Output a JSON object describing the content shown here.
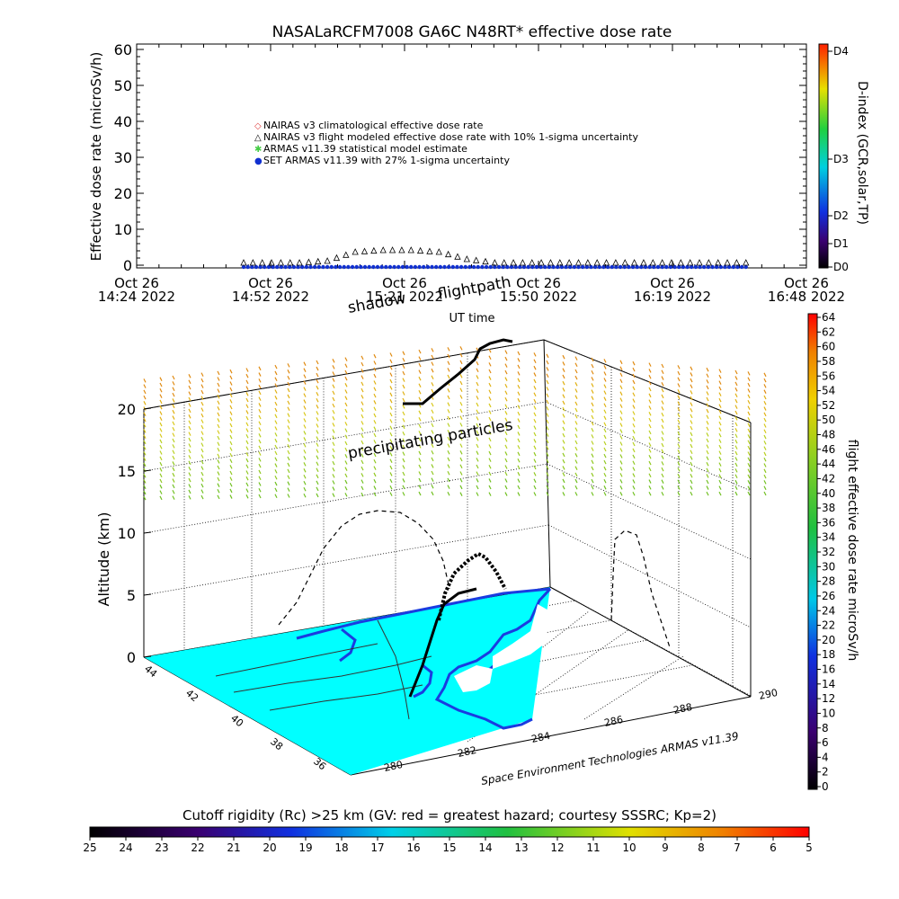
{
  "title": "NASALaRCFM7008   GA6C N48RT* effective dose rate",
  "top_chart": {
    "ylabel": "Effective dose rate (microSv/h)",
    "xlabel": "UT time",
    "y_ticks": [
      "60",
      "50",
      "40",
      "30",
      "20",
      "10",
      "0"
    ],
    "x_ticks": [
      {
        "line1": "Oct 26",
        "line2": "14:24 2022"
      },
      {
        "line1": "Oct 26",
        "line2": "14:52 2022"
      },
      {
        "line1": "Oct 26",
        "line2": "15:21 2022"
      },
      {
        "line1": "Oct 26",
        "line2": "15:50 2022"
      },
      {
        "line1": "Oct 26",
        "line2": "16:19 2022"
      },
      {
        "line1": "Oct 26",
        "line2": "16:48 2022"
      }
    ],
    "legend": [
      {
        "symbol": "◇",
        "color": "#e04040",
        "label": "NAIRAS v3 climatological effective dose rate"
      },
      {
        "symbol": "△",
        "color": "#000000",
        "label": "NAIRAS v3 flight modeled effective dose rate with 10% 1-sigma uncertainty"
      },
      {
        "symbol": "✱",
        "color": "#44cc44",
        "label": "ARMAS v11.39 statistical model estimate"
      },
      {
        "symbol": "●",
        "color": "#1030d0",
        "label": "SET ARMAS v11.39 with 27% 1-sigma uncertainty"
      }
    ]
  },
  "dindex_bar": {
    "label": "D-index (GCR,solar,TP)",
    "ticks": [
      "D4",
      "D3",
      "D2",
      "D1",
      "D0"
    ]
  },
  "dose_bar": {
    "label": "flight effective dose rate microSv/h",
    "ticks": [
      "64",
      "62",
      "60",
      "58",
      "56",
      "54",
      "52",
      "50",
      "48",
      "46",
      "44",
      "42",
      "40",
      "38",
      "36",
      "34",
      "32",
      "30",
      "28",
      "26",
      "24",
      "22",
      "20",
      "18",
      "16",
      "14",
      "12",
      "10",
      "8",
      "6",
      "4",
      "2",
      "0"
    ]
  },
  "three_d": {
    "zlabel": "Altitude (km)",
    "z_ticks": [
      "20",
      "15",
      "10",
      "5",
      "0"
    ],
    "lat_ticks": [
      "44",
      "42",
      "40",
      "38",
      "36"
    ],
    "lon_ticks": [
      "280",
      "282",
      "284",
      "286",
      "288",
      "290"
    ],
    "annotation_shadow": "shadow",
    "annotation_flightpath": "flightpath",
    "annotation_particles": "precipitating particles",
    "credit": "Space Environment Technologies ARMAS v11.39"
  },
  "cutoff_bar": {
    "label": "Cutoff rigidity (Rc) >25 km (GV: red = greatest hazard; courtesy SSSRC; Kp=2)",
    "ticks": [
      "25",
      "24",
      "23",
      "22",
      "21",
      "20",
      "19",
      "18",
      "17",
      "16",
      "15",
      "14",
      "13",
      "12",
      "11",
      "10",
      "9",
      "8",
      "7",
      "6",
      "5"
    ]
  },
  "chart_data": {
    "type": "scatter",
    "title": "NASALaRCFM7008   GA6C N48RT* effective dose rate",
    "xlabel": "UT time",
    "ylabel": "Effective dose rate (microSv/h)",
    "ylim": [
      0,
      60
    ],
    "xlim": [
      "14:24",
      "16:48"
    ],
    "x": [
      "14:47",
      "14:53",
      "14:59",
      "15:05",
      "15:11",
      "15:17",
      "15:23",
      "15:29",
      "15:35",
      "15:41",
      "15:47",
      "15:53",
      "15:59",
      "16:05",
      "16:11",
      "16:17",
      "16:23",
      "16:29",
      "16:35"
    ],
    "series": [
      {
        "name": "NAIRAS v3 flight modeled effective dose rate with 10% 1-sigma uncertainty",
        "values": [
          0.0,
          0.0,
          0.0,
          0.5,
          3.0,
          3.5,
          3.5,
          3.0,
          1.0,
          0.0,
          0.0,
          0.0,
          0.0,
          0.0,
          0.0,
          0.0,
          0.0,
          0.0,
          0.0
        ]
      },
      {
        "name": "SET ARMAS v11.39 with 27% 1-sigma uncertainty",
        "values": [
          0.0,
          0.0,
          0.0,
          0.0,
          0.0,
          0.0,
          0.0,
          0.0,
          0.0,
          0.0,
          0.0,
          0.0,
          0.0,
          0.0,
          0.0,
          0.0,
          0.0,
          0.0,
          0.0
        ]
      }
    ],
    "grid": false,
    "legend": "top-left"
  }
}
